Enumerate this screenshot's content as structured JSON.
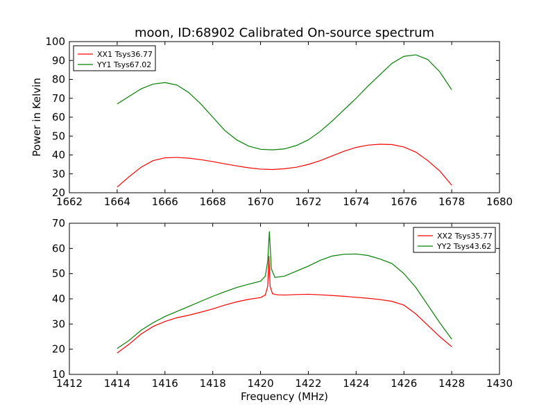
{
  "figure": {
    "title": "moon, ID:68902 Calibrated On-source spectrum",
    "ylabel": "Power in Kelvin",
    "xlabel": "Frequency (MHz)"
  },
  "chart_data": [
    {
      "type": "line",
      "title": "moon, ID:68902 Calibrated On-source spectrum",
      "xlabel": "",
      "ylabel": "Power in Kelvin",
      "xlim": [
        1662,
        1680
      ],
      "ylim": [
        20,
        100
      ],
      "xticks": [
        1662,
        1664,
        1666,
        1668,
        1670,
        1672,
        1674,
        1676,
        1678,
        1680
      ],
      "yticks": [
        20,
        30,
        40,
        50,
        60,
        70,
        80,
        90,
        100
      ],
      "legend_position": "top-left",
      "grid": false,
      "series": [
        {
          "name": "XX1 Tsys36.77",
          "color": "#ff0000",
          "x": [
            1664.0,
            1664.5,
            1665.0,
            1665.5,
            1666.0,
            1666.5,
            1667.0,
            1667.5,
            1668.0,
            1668.5,
            1669.0,
            1669.5,
            1670.0,
            1670.5,
            1671.0,
            1671.5,
            1672.0,
            1672.5,
            1673.0,
            1673.5,
            1674.0,
            1674.5,
            1675.0,
            1675.5,
            1676.0,
            1676.5,
            1677.0,
            1677.5,
            1678.0
          ],
          "y": [
            23.0,
            28.5,
            33.5,
            37.0,
            38.5,
            38.7,
            38.3,
            37.5,
            36.5,
            35.3,
            34.2,
            33.2,
            32.5,
            32.3,
            32.7,
            33.5,
            35.0,
            37.0,
            39.5,
            42.0,
            44.0,
            45.2,
            45.7,
            45.5,
            44.2,
            41.5,
            37.0,
            31.5,
            24.0
          ]
        },
        {
          "name": "YY1 Tsys67.02",
          "color": "#008000",
          "x": [
            1664.0,
            1664.5,
            1665.0,
            1665.5,
            1666.0,
            1666.5,
            1667.0,
            1667.5,
            1668.0,
            1668.5,
            1669.0,
            1669.5,
            1670.0,
            1670.5,
            1671.0,
            1671.5,
            1672.0,
            1672.5,
            1673.0,
            1673.5,
            1674.0,
            1674.5,
            1675.0,
            1675.5,
            1676.0,
            1676.5,
            1677.0,
            1677.5,
            1678.0
          ],
          "y": [
            67.0,
            71.0,
            75.0,
            77.5,
            78.3,
            77.0,
            73.0,
            67.0,
            60.0,
            53.0,
            48.0,
            44.7,
            43.0,
            42.7,
            43.2,
            45.0,
            48.0,
            52.5,
            58.0,
            64.0,
            70.0,
            76.5,
            82.5,
            88.5,
            92.2,
            93.0,
            90.5,
            84.0,
            74.5
          ]
        }
      ]
    },
    {
      "type": "line",
      "title": "",
      "xlabel": "Frequency (MHz)",
      "ylabel": "",
      "xlim": [
        1412,
        1430
      ],
      "ylim": [
        10,
        70
      ],
      "xticks": [
        1412,
        1414,
        1416,
        1418,
        1420,
        1422,
        1424,
        1426,
        1428,
        1430
      ],
      "yticks": [
        10,
        20,
        30,
        40,
        50,
        60,
        70
      ],
      "legend_position": "top-right",
      "grid": false,
      "series": [
        {
          "name": "XX2 Tsys35.77",
          "color": "#ff0000",
          "x": [
            1414.0,
            1414.5,
            1415.0,
            1415.5,
            1416.0,
            1416.5,
            1417.0,
            1417.5,
            1418.0,
            1418.5,
            1419.0,
            1419.5,
            1420.0,
            1420.2,
            1420.3,
            1420.35,
            1420.4,
            1420.5,
            1420.7,
            1421.0,
            1421.5,
            1422.0,
            1422.5,
            1423.0,
            1423.5,
            1424.0,
            1424.5,
            1425.0,
            1425.5,
            1426.0,
            1426.5,
            1427.0,
            1427.5,
            1428.0
          ],
          "y": [
            18.5,
            22.0,
            26.0,
            29.0,
            31.0,
            32.5,
            33.5,
            34.7,
            36.0,
            37.5,
            38.8,
            39.8,
            40.5,
            41.5,
            45.0,
            57.0,
            45.0,
            42.0,
            41.6,
            41.5,
            41.7,
            41.8,
            41.6,
            41.3,
            41.0,
            40.6,
            40.2,
            39.7,
            39.0,
            37.5,
            34.0,
            29.5,
            25.0,
            21.0
          ]
        },
        {
          "name": "YY2 Tsys43.62",
          "color": "#008000",
          "x": [
            1414.0,
            1414.5,
            1415.0,
            1415.5,
            1416.0,
            1416.5,
            1417.0,
            1417.5,
            1418.0,
            1418.5,
            1419.0,
            1419.5,
            1420.0,
            1420.2,
            1420.3,
            1420.37,
            1420.45,
            1420.6,
            1421.0,
            1421.5,
            1422.0,
            1422.5,
            1423.0,
            1423.5,
            1424.0,
            1424.5,
            1425.0,
            1425.5,
            1426.0,
            1426.5,
            1427.0,
            1427.5,
            1428.0
          ],
          "y": [
            20.3,
            23.5,
            27.5,
            30.5,
            33.0,
            35.0,
            37.0,
            39.0,
            41.0,
            42.8,
            44.5,
            45.8,
            47.0,
            49.0,
            55.0,
            66.8,
            52.0,
            48.5,
            49.0,
            51.0,
            53.0,
            55.3,
            57.0,
            57.7,
            57.8,
            57.2,
            55.8,
            54.0,
            50.0,
            44.5,
            37.5,
            30.5,
            24.0
          ]
        }
      ]
    }
  ]
}
